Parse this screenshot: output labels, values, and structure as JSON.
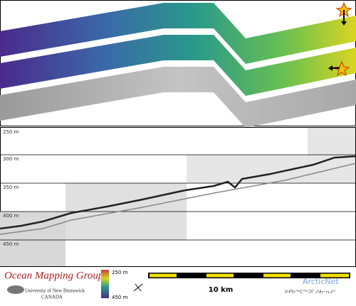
{
  "profile": {
    "depth_labels": [
      "250 m",
      "300 m",
      "350 m",
      "400 m",
      "450 m"
    ]
  },
  "footer": {
    "logo": {
      "title": "Ocean Mapping Group",
      "university": "University of New Brunswick",
      "country": "CANADA"
    },
    "colorbar": {
      "top": "250 m",
      "bottom": "450 m"
    },
    "scale_bar": {
      "label": "10 km"
    },
    "partner": {
      "name": "ArcticNet",
      "subtitle": "ᐅᑭᐅᖅᑕᖅᑐᒥ ᓯᑯᓕᕆᔨᑦ"
    }
  }
}
